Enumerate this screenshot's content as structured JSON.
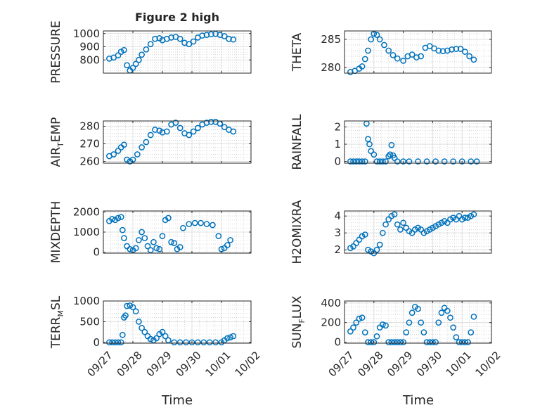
{
  "figure_title": "Figure 2 high",
  "x_ticks": [
    "09/27",
    "09/28",
    "09/29",
    "09/30",
    "10/01",
    "10/02"
  ],
  "x_label": "Time",
  "colors": {
    "marker": "#0072bd",
    "axis": "#262626",
    "grid": "#c8c8c8"
  },
  "chart_data": [
    {
      "type": "scatter",
      "ylabel": "PRESSURE",
      "ylim": [
        700,
        1020
      ],
      "yticks": [
        800,
        900,
        1000
      ],
      "xlim": [
        0,
        5
      ],
      "grid": true,
      "x": [
        0.2,
        0.35,
        0.5,
        0.6,
        0.7,
        0.8,
        0.9,
        1.0,
        1.1,
        1.2,
        1.3,
        1.45,
        1.6,
        1.75,
        1.9,
        2.0,
        2.15,
        2.3,
        2.45,
        2.6,
        2.75,
        2.9,
        3.05,
        3.2,
        3.35,
        3.5,
        3.65,
        3.8,
        3.95,
        4.1,
        4.25,
        4.4
      ],
      "y": [
        810,
        818,
        835,
        862,
        875,
        760,
        720,
        740,
        770,
        800,
        840,
        880,
        920,
        960,
        965,
        950,
        960,
        970,
        975,
        960,
        930,
        920,
        940,
        970,
        985,
        990,
        995,
        998,
        990,
        980,
        960,
        955
      ]
    },
    {
      "type": "scatter",
      "ylabel": "THETA",
      "ylim": [
        279,
        286.5
      ],
      "yticks": [
        280,
        285
      ],
      "xlim": [
        0,
        5
      ],
      "grid": true,
      "x": [
        0.2,
        0.35,
        0.5,
        0.6,
        0.7,
        0.8,
        0.9,
        1.0,
        1.1,
        1.2,
        1.35,
        1.5,
        1.65,
        1.8,
        2.0,
        2.15,
        2.3,
        2.45,
        2.6,
        2.75,
        2.9,
        3.05,
        3.2,
        3.35,
        3.5,
        3.65,
        3.8,
        3.95,
        4.1,
        4.25,
        4.4
      ],
      "y": [
        279.2,
        279.4,
        279.8,
        280.2,
        281.5,
        283.0,
        285.0,
        286.0,
        285.8,
        285.0,
        284.0,
        283.0,
        282.2,
        281.6,
        281.2,
        282.0,
        282.3,
        281.8,
        282.0,
        283.5,
        283.8,
        283.4,
        283.0,
        282.9,
        283.0,
        283.2,
        283.3,
        283.3,
        282.8,
        282.0,
        281.4
      ]
    },
    {
      "type": "scatter",
      "ylabel": "AIR_TEMP",
      "ylim": [
        259,
        283
      ],
      "yticks": [
        260,
        270,
        280
      ],
      "xlim": [
        0,
        5
      ],
      "grid": true,
      "x": [
        0.2,
        0.35,
        0.5,
        0.6,
        0.7,
        0.8,
        0.9,
        1.0,
        1.15,
        1.3,
        1.45,
        1.6,
        1.75,
        1.9,
        2.0,
        2.15,
        2.3,
        2.45,
        2.6,
        2.75,
        2.9,
        3.05,
        3.2,
        3.35,
        3.5,
        3.65,
        3.8,
        3.95,
        4.1,
        4.25,
        4.4
      ],
      "y": [
        263,
        264,
        266,
        268,
        269.5,
        261,
        260,
        261,
        264,
        268,
        271,
        275,
        278,
        277.5,
        276.5,
        277,
        281,
        282,
        279,
        276,
        275,
        277,
        279,
        281,
        282,
        282.5,
        282.5,
        281.5,
        279.5,
        278,
        277
      ]
    },
    {
      "type": "scatter",
      "ylabel": "RAINFALL",
      "ylim": [
        -0.1,
        2.35
      ],
      "yticks": [
        0,
        1,
        2
      ],
      "xlim": [
        0,
        5
      ],
      "grid": true,
      "x": [
        0.2,
        0.3,
        0.4,
        0.5,
        0.6,
        0.7,
        0.75,
        0.8,
        0.85,
        0.9,
        1.0,
        1.1,
        1.2,
        1.3,
        1.4,
        1.5,
        1.55,
        1.6,
        1.65,
        1.7,
        1.8,
        2.0,
        2.2,
        2.5,
        2.8,
        3.1,
        3.4,
        3.7,
        4.0,
        4.3,
        4.5
      ],
      "y": [
        0,
        0,
        0,
        0,
        0,
        0,
        2.2,
        1.3,
        1.0,
        0.6,
        0.4,
        0,
        0,
        0,
        0,
        0.3,
        0.4,
        0.95,
        0.35,
        0.2,
        0,
        0,
        0,
        0,
        0,
        0,
        0,
        0,
        0,
        0,
        0
      ]
    },
    {
      "type": "scatter",
      "ylabel": "MIXDEPTH",
      "ylim": [
        -50,
        2050
      ],
      "yticks": [
        0,
        1000,
        2000
      ],
      "xlim": [
        0,
        5
      ],
      "grid": true,
      "x": [
        0.2,
        0.3,
        0.4,
        0.5,
        0.6,
        0.65,
        0.7,
        0.8,
        0.9,
        1.0,
        1.1,
        1.2,
        1.3,
        1.4,
        1.5,
        1.6,
        1.7,
        1.8,
        1.9,
        2.0,
        2.1,
        2.2,
        2.3,
        2.4,
        2.5,
        2.6,
        2.7,
        2.9,
        3.1,
        3.3,
        3.5,
        3.7,
        3.9,
        4.0,
        4.1,
        4.2,
        4.3
      ],
      "y": [
        1550,
        1650,
        1600,
        1700,
        1750,
        1100,
        700,
        300,
        150,
        100,
        200,
        600,
        1000,
        700,
        300,
        100,
        500,
        200,
        150,
        800,
        1600,
        1700,
        500,
        450,
        150,
        250,
        1200,
        1400,
        1450,
        1450,
        1400,
        1350,
        800,
        150,
        200,
        350,
        600
      ]
    },
    {
      "type": "scatter",
      "ylabel": "H2OMIXRA",
      "ylim": [
        1.8,
        4.3
      ],
      "yticks": [
        2,
        3,
        4
      ],
      "xlim": [
        0,
        5
      ],
      "grid": true,
      "x": [
        0.2,
        0.3,
        0.4,
        0.5,
        0.6,
        0.7,
        0.8,
        0.9,
        1.0,
        1.1,
        1.2,
        1.3,
        1.4,
        1.5,
        1.6,
        1.7,
        1.8,
        1.9,
        2.0,
        2.1,
        2.2,
        2.3,
        2.4,
        2.5,
        2.6,
        2.7,
        2.8,
        2.9,
        3.0,
        3.1,
        3.2,
        3.3,
        3.4,
        3.5,
        3.6,
        3.7,
        3.8,
        3.9,
        4.0,
        4.1,
        4.2,
        4.3,
        4.4
      ],
      "y": [
        2.1,
        2.2,
        2.4,
        2.6,
        2.8,
        2.9,
        2.0,
        1.9,
        1.8,
        2.0,
        2.3,
        3.0,
        3.5,
        3.8,
        4.0,
        4.1,
        3.5,
        3.2,
        3.6,
        3.3,
        3.1,
        3.0,
        3.2,
        3.3,
        3.2,
        3.0,
        3.1,
        3.2,
        3.3,
        3.4,
        3.5,
        3.6,
        3.7,
        3.6,
        3.8,
        3.9,
        3.8,
        4.0,
        3.8,
        3.9,
        3.9,
        4.0,
        4.1
      ]
    },
    {
      "type": "scatter",
      "ylabel": "TERR_MSL",
      "ylim": [
        -20,
        1000
      ],
      "yticks": [
        0,
        500,
        1000
      ],
      "xlim": [
        0,
        5
      ],
      "grid": true,
      "x": [
        0.2,
        0.3,
        0.4,
        0.5,
        0.6,
        0.65,
        0.7,
        0.75,
        0.8,
        0.9,
        1.0,
        1.1,
        1.2,
        1.3,
        1.4,
        1.5,
        1.6,
        1.7,
        1.8,
        1.9,
        2.0,
        2.1,
        2.2,
        2.4,
        2.6,
        2.8,
        3.0,
        3.2,
        3.4,
        3.6,
        3.8,
        4.0,
        4.1,
        4.2,
        4.3,
        4.4
      ],
      "y": [
        0,
        0,
        0,
        0,
        0,
        180,
        600,
        650,
        880,
        890,
        850,
        750,
        500,
        350,
        250,
        150,
        80,
        50,
        100,
        200,
        250,
        150,
        50,
        0,
        0,
        0,
        0,
        0,
        0,
        0,
        0,
        0,
        50,
        100,
        120,
        150
      ]
    },
    {
      "type": "scatter",
      "ylabel": "SUN_FLUX",
      "ylim": [
        -10,
        420
      ],
      "yticks": [
        0,
        200,
        400
      ],
      "xlim": [
        0,
        5
      ],
      "grid": true,
      "x": [
        0.2,
        0.3,
        0.4,
        0.5,
        0.6,
        0.7,
        0.8,
        0.9,
        1.0,
        1.1,
        1.2,
        1.3,
        1.4,
        1.5,
        1.6,
        1.7,
        1.8,
        1.9,
        2.0,
        2.1,
        2.2,
        2.3,
        2.4,
        2.5,
        2.6,
        2.7,
        2.8,
        2.9,
        3.0,
        3.1,
        3.2,
        3.3,
        3.4,
        3.5,
        3.6,
        3.7,
        3.8,
        3.9,
        4.0,
        4.1,
        4.2,
        4.3,
        4.4
      ],
      "y": [
        110,
        150,
        200,
        240,
        250,
        100,
        0,
        0,
        0,
        60,
        150,
        180,
        170,
        0,
        0,
        0,
        0,
        0,
        0,
        100,
        200,
        300,
        360,
        340,
        200,
        100,
        0,
        0,
        0,
        0,
        200,
        300,
        350,
        320,
        250,
        150,
        50,
        0,
        0,
        0,
        0,
        100,
        260
      ]
    }
  ]
}
